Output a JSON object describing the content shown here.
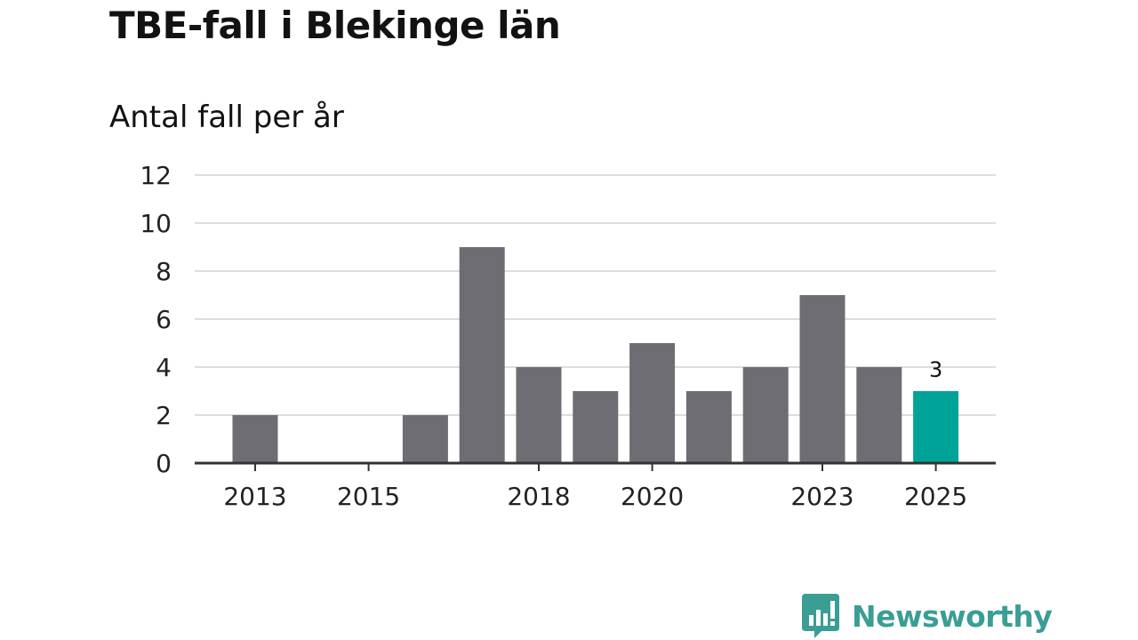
{
  "chart_data": {
    "type": "bar",
    "title": "TBE-fall i Blekinge län",
    "subtitle": "Antal fall per år",
    "xlabel": "",
    "ylabel": "",
    "categories": [
      "2013",
      "2014",
      "2015",
      "2016",
      "2017",
      "2018",
      "2019",
      "2020",
      "2021",
      "2022",
      "2023",
      "2024",
      "2025"
    ],
    "values": [
      2,
      0,
      0,
      2,
      9,
      4,
      3,
      5,
      3,
      4,
      7,
      4,
      3
    ],
    "x_tick_labels": [
      "2013",
      "2015",
      "2018",
      "2020",
      "2023",
      "2025"
    ],
    "y_ticks": [
      0,
      2,
      4,
      6,
      8,
      10,
      12
    ],
    "ylim": [
      0,
      12
    ],
    "grid": true,
    "highlight": {
      "category": "2025",
      "label": "3"
    },
    "colors": {
      "bar": "#6e6d73",
      "highlight": "#00a398",
      "grid": "#dddddd",
      "axis": "#333333"
    }
  },
  "branding": {
    "name": "Newsworthy",
    "color": "#3a9e95",
    "icon": "bar-chart-speech-bubble-icon"
  }
}
